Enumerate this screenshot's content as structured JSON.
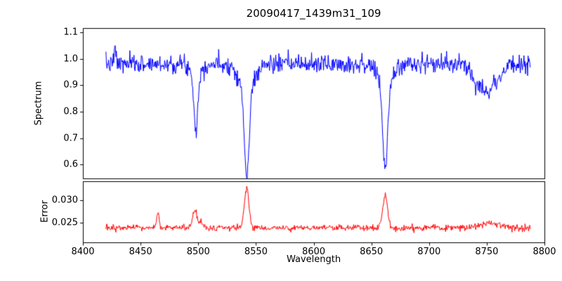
{
  "chart_data": {
    "type": "line",
    "title": "20090417_1439m31_109",
    "xlabel": "Wavelength",
    "x_range": [
      8400,
      8800
    ],
    "x_ticks": [
      {
        "value": 8400,
        "label": "8400"
      },
      {
        "value": 8450,
        "label": "8450"
      },
      {
        "value": 8500,
        "label": "8500"
      },
      {
        "value": 8550,
        "label": "8550"
      },
      {
        "value": 8600,
        "label": "8600"
      },
      {
        "value": 8650,
        "label": "8650"
      },
      {
        "value": 8700,
        "label": "8700"
      },
      {
        "value": 8750,
        "label": "8750"
      },
      {
        "value": 8800,
        "label": "8800"
      }
    ],
    "series_x": {
      "start": 8420,
      "end": 8788,
      "step": 0.45
    },
    "grid": false,
    "legend": "none",
    "panels": [
      {
        "name": "spectrum",
        "ylabel": "Spectrum",
        "ylim": [
          0.548,
          1.116
        ],
        "y_ticks": [
          {
            "value": 1.1,
            "label": "1.1"
          },
          {
            "value": 1.0,
            "label": "1.0"
          },
          {
            "value": 0.9,
            "label": "0.9"
          },
          {
            "value": 0.8,
            "label": "0.8"
          },
          {
            "value": 0.7,
            "label": "0.7"
          },
          {
            "value": 0.6,
            "label": "0.6"
          }
        ],
        "color": "#0000ff",
        "baseline": 0.98,
        "noise_std": 0.017,
        "seed": 7,
        "features": [
          {
            "center": 8428,
            "amp": 0.06,
            "width": 0.8
          },
          {
            "center": 8498,
            "amp": -0.2,
            "width": 1.6
          },
          {
            "center": 8498,
            "amp": -0.05,
            "width": 4.0
          },
          {
            "center": 8542,
            "amp": -0.32,
            "width": 2.0
          },
          {
            "center": 8542,
            "amp": -0.11,
            "width": 6.0
          },
          {
            "center": 8662,
            "amp": -0.3,
            "width": 2.0
          },
          {
            "center": 8662,
            "amp": -0.1,
            "width": 5.5
          },
          {
            "center": 8750,
            "amp": -0.1,
            "width": 9.0
          }
        ]
      },
      {
        "name": "error",
        "ylabel": "Error",
        "ylim": [
          0.0206,
          0.0342
        ],
        "y_ticks": [
          {
            "value": 0.03,
            "label": "0.030"
          },
          {
            "value": 0.025,
            "label": "0.025"
          }
        ],
        "color": "#ff0000",
        "baseline": 0.0238,
        "noise_std": 0.00035,
        "seed": 13,
        "features": [
          {
            "center": 8465,
            "amp": 0.0033,
            "width": 1.2
          },
          {
            "center": 8497,
            "amp": 0.0038,
            "width": 2.2
          },
          {
            "center": 8503,
            "amp": 0.0012,
            "width": 1.5
          },
          {
            "center": 8542,
            "amp": 0.0088,
            "width": 2.0
          },
          {
            "center": 8662,
            "amp": 0.0075,
            "width": 2.0
          },
          {
            "center": 8752,
            "amp": 0.0009,
            "width": 10.0
          }
        ]
      }
    ]
  }
}
